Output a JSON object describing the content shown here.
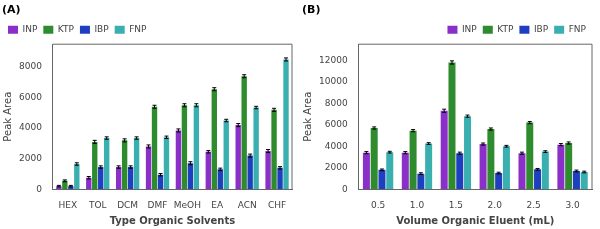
{
  "chart_data": [
    {
      "type": "bar",
      "title": "(A)",
      "xlabel": "Type Organic Solvents",
      "ylabel": "Peak Area",
      "categories": [
        "HEX",
        "TOL",
        "DCM",
        "DMF",
        "MeOH",
        "EA",
        "ACN",
        "CHF"
      ],
      "series": [
        {
          "name": "INP",
          "color": "#8B2FC9",
          "values": [
            200,
            750,
            1450,
            2800,
            3850,
            2450,
            4200,
            2500
          ],
          "errors": [
            50,
            80,
            80,
            100,
            100,
            80,
            100,
            100
          ]
        },
        {
          "name": "KTP",
          "color": "#2E8B2E",
          "values": [
            550,
            3100,
            3200,
            5400,
            5500,
            6550,
            7400,
            5200
          ],
          "errors": [
            60,
            100,
            100,
            100,
            100,
            100,
            100,
            100
          ]
        },
        {
          "name": "IBP",
          "color": "#1E3FBF",
          "values": [
            200,
            1450,
            1450,
            950,
            1700,
            1300,
            2200,
            1400
          ],
          "errors": [
            50,
            80,
            80,
            80,
            100,
            80,
            100,
            80
          ]
        },
        {
          "name": "FNP",
          "color": "#3AAFAF",
          "values": [
            1650,
            3350,
            3350,
            3400,
            5500,
            4500,
            5350,
            8500
          ],
          "errors": [
            80,
            80,
            80,
            80,
            100,
            80,
            80,
            100
          ]
        }
      ],
      "ylim": [
        0,
        9500
      ],
      "yticks": [
        0,
        2000,
        4000,
        6000,
        8000
      ],
      "grid": false,
      "legend": "upper left"
    },
    {
      "type": "bar",
      "title": "(B)",
      "xlabel": "Volume Organic Eluent (mL)",
      "ylabel": "Peak Area",
      "categories": [
        "0.5",
        "1.0",
        "1.5",
        "2.0",
        "2.5",
        "3.0"
      ],
      "series": [
        {
          "name": "INP",
          "color": "#8B2FC9",
          "values": [
            3400,
            3400,
            7300,
            4200,
            3350,
            4150
          ],
          "errors": [
            100,
            100,
            150,
            100,
            100,
            100
          ]
        },
        {
          "name": "KTP",
          "color": "#2E8B2E",
          "values": [
            5700,
            5450,
            11800,
            5600,
            6200,
            4300
          ],
          "errors": [
            100,
            100,
            150,
            100,
            100,
            100
          ]
        },
        {
          "name": "IBP",
          "color": "#1E3FBF",
          "values": [
            1800,
            1450,
            3350,
            1500,
            1850,
            1700
          ],
          "errors": [
            80,
            80,
            100,
            80,
            80,
            80
          ]
        },
        {
          "name": "FNP",
          "color": "#3AAFAF",
          "values": [
            3450,
            4250,
            6800,
            4000,
            3500,
            1600
          ],
          "errors": [
            80,
            80,
            100,
            80,
            80,
            80
          ]
        }
      ],
      "ylim": [
        0,
        13500
      ],
      "yticks": [
        0,
        2000,
        4000,
        6000,
        8000,
        10000,
        12000
      ],
      "grid": false,
      "legend": "upper right"
    }
  ]
}
